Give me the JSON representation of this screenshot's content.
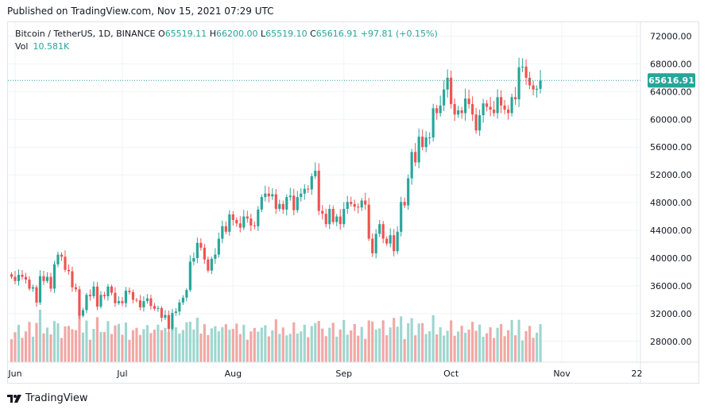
{
  "header": {
    "published": "Published on TradingView.com, Nov 15, 2021 07:29 UTC"
  },
  "legend": {
    "symbol": "Bitcoin / TetherUS, 1D, BINANCE",
    "o_label": "O",
    "o_value": "65519.11",
    "h_label": "H",
    "h_value": "66200.00",
    "l_label": "L",
    "l_value": "65519.10",
    "c_label": "C",
    "c_value": "65616.91",
    "change": "+97.81 (+0.15%)",
    "vol_label": "Vol",
    "vol_value": "10.581K"
  },
  "footer": {
    "brand": "TradingView"
  },
  "colors": {
    "up": "#26a69a",
    "down": "#ef5350",
    "vol_up": "#9fd6cf",
    "vol_down": "#f2a7a5",
    "grid": "#f0f3fa",
    "axis_text": "#131722"
  },
  "chart_data": {
    "type": "candlestick",
    "title": "Bitcoin / TetherUS, 1D, BINANCE",
    "interval": "1D",
    "y_ticks": [
      28000,
      32000,
      36000,
      40000,
      44000,
      48000,
      52000,
      56000,
      60000,
      64000,
      68000,
      72000
    ],
    "y_tick_labels": [
      "28000.00",
      "32000.00",
      "36000.00",
      "40000.00",
      "44000.00",
      "48000.00",
      "52000.00",
      "56000.00",
      "60000.00",
      "64000.00",
      "68000.00",
      "72000.00"
    ],
    "x_tick_labels": [
      {
        "label": "Jun",
        "date": "2021-06-01"
      },
      {
        "label": "Jul",
        "date": "2021-07-01"
      },
      {
        "label": "Aug",
        "date": "2021-08-01"
      },
      {
        "label": "Sep",
        "date": "2021-09-01"
      },
      {
        "label": "Oct",
        "date": "2021-10-01"
      },
      {
        "label": "Nov",
        "date": "2021-11-01"
      },
      {
        "label": "22",
        "date": "2021-11-22"
      }
    ],
    "x_range": [
      "2021-05-30",
      "2021-11-23"
    ],
    "ylim": [
      25000,
      74000
    ],
    "last_price": 65616.91,
    "last_price_label": "65616.91",
    "start_date": "2021-05-31",
    "closes": [
      37300,
      36700,
      37600,
      37300,
      36900,
      35600,
      35800,
      33600,
      37400,
      36700,
      37300,
      35600,
      39100,
      40500,
      40200,
      38300,
      38100,
      35800,
      35500,
      31700,
      32500,
      34700,
      34500,
      35900,
      33000,
      34700,
      34500,
      35900,
      35000,
      33500,
      33800,
      33500,
      35300,
      35100,
      34000,
      33900,
      32900,
      33800,
      34200,
      33100,
      32700,
      32800,
      31400,
      31800,
      29800,
      32100,
      32300,
      33600,
      34300,
      35400,
      39500,
      40000,
      42200,
      41500,
      39800,
      38200,
      39900,
      40500,
      42800,
      44600,
      43800,
      46300,
      45500,
      45000,
      44400,
      46000,
      45700,
      44700,
      44600,
      47000,
      48800,
      49300,
      48900,
      49200,
      47100,
      47800,
      47000,
      48800,
      49000,
      46900,
      48800,
      49300,
      50000,
      49900,
      51800,
      52600,
      46800,
      46400,
      44900,
      47100,
      45200,
      46000,
      44900,
      47100,
      48100,
      47800,
      47400,
      47300,
      48300,
      47700,
      42800,
      40700,
      43500,
      44900,
      42800,
      42100,
      43300,
      41000,
      43800,
      48100,
      47600,
      51500,
      55300,
      53800,
      57500,
      56000,
      57400,
      57400,
      61600,
      60900,
      62000,
      64300,
      66000,
      62200,
      60700,
      61300,
      60900,
      63000,
      62200,
      60700,
      58400,
      60600,
      62300,
      61800,
      61400,
      60900,
      63200,
      62000,
      61400,
      60900,
      63200,
      62900,
      67500,
      67600,
      66000,
      64900,
      64300,
      64400,
      65600
    ]
  }
}
